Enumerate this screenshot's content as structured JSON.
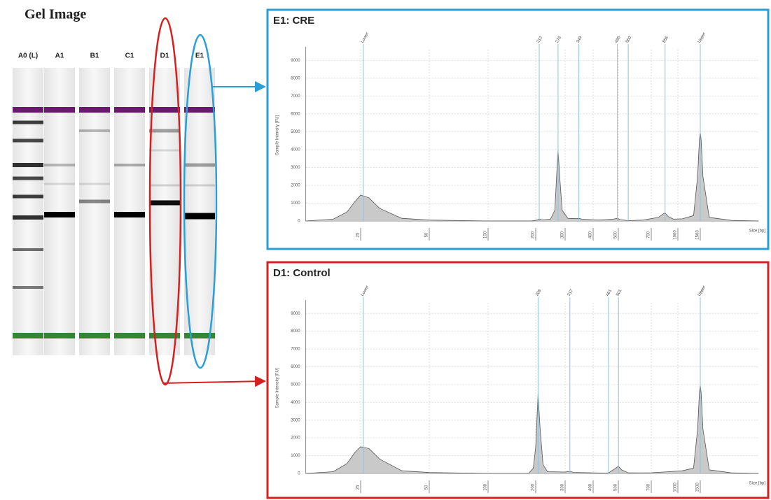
{
  "gel": {
    "title": "Gel Image",
    "lanes": [
      "A0 (L)",
      "A1",
      "B1",
      "C1",
      "D1",
      "E1"
    ]
  },
  "chart_data": [
    {
      "type": "line",
      "title": "E1: CRE",
      "ylabel": "Sample Intensity [FU]",
      "xlabel": "Size [bp]",
      "color": "#c9c9c9",
      "line_color": "#555555",
      "frame_color": "#2a9fd6",
      "marker_color": "#8fc3dc",
      "grid": true,
      "xlim": [
        5,
        2800
      ],
      "xticks": [
        25,
        50,
        100,
        200,
        300,
        400,
        500,
        700,
        1000,
        1500
      ],
      "ylim": [
        0,
        9600
      ],
      "yticks": [
        0,
        1000,
        2000,
        3000,
        4000,
        5000,
        6000,
        7000,
        8000,
        9000
      ],
      "peaks": [
        {
          "value": 26,
          "label": "Lower"
        },
        212,
        276,
        349,
        496,
        560,
        856,
        {
          "value": 1500,
          "label": "Upper"
        }
      ],
      "x": [
        5,
        15,
        20,
        23,
        25,
        28,
        32,
        40,
        50,
        100,
        190,
        205,
        212,
        220,
        250,
        265,
        270,
        276,
        282,
        290,
        310,
        340,
        349,
        360,
        420,
        480,
        496,
        510,
        560,
        650,
        780,
        830,
        856,
        890,
        950,
        1100,
        1350,
        1440,
        1480,
        1500,
        1520,
        1560,
        1700,
        2200,
        2800
      ],
      "values": [
        0,
        100,
        500,
        1100,
        1450,
        1300,
        700,
        150,
        50,
        0,
        0,
        50,
        120,
        60,
        100,
        600,
        2200,
        4000,
        2400,
        600,
        150,
        130,
        150,
        100,
        50,
        100,
        150,
        80,
        20,
        50,
        200,
        380,
        450,
        250,
        100,
        120,
        300,
        2500,
        4500,
        5000,
        4500,
        2500,
        200,
        30,
        0
      ]
    },
    {
      "type": "line",
      "title": "D1: Control",
      "ylabel": "Sample Intensity [FU]",
      "xlabel": "Size [bp]",
      "color": "#c9c9c9",
      "line_color": "#555555",
      "frame_color": "#d62020",
      "marker_color": "#8fc3dc",
      "grid": true,
      "xlim": [
        5,
        2800
      ],
      "xticks": [
        25,
        50,
        100,
        200,
        300,
        400,
        500,
        700,
        1000,
        1500
      ],
      "ylim": [
        0,
        9600
      ],
      "yticks": [
        0,
        1000,
        2000,
        3000,
        4000,
        5000,
        6000,
        7000,
        8000,
        9000
      ],
      "peaks": [
        {
          "value": 26,
          "label": "Lower"
        },
        208,
        317,
        461,
        501,
        {
          "value": 1500,
          "label": "Upper"
        }
      ],
      "x": [
        5,
        15,
        20,
        23,
        25,
        28,
        32,
        40,
        50,
        100,
        185,
        195,
        200,
        208,
        215,
        225,
        240,
        300,
        317,
        330,
        400,
        450,
        461,
        480,
        501,
        520,
        560,
        700,
        900,
        1100,
        1350,
        1440,
        1480,
        1500,
        1520,
        1560,
        1700,
        2200,
        2800
      ],
      "values": [
        0,
        100,
        550,
        1200,
        1500,
        1400,
        800,
        150,
        50,
        0,
        0,
        300,
        1500,
        4500,
        2500,
        500,
        100,
        80,
        120,
        60,
        30,
        20,
        30,
        200,
        400,
        200,
        30,
        40,
        100,
        150,
        300,
        2500,
        4500,
        5000,
        4500,
        2500,
        200,
        30,
        0
      ]
    }
  ]
}
